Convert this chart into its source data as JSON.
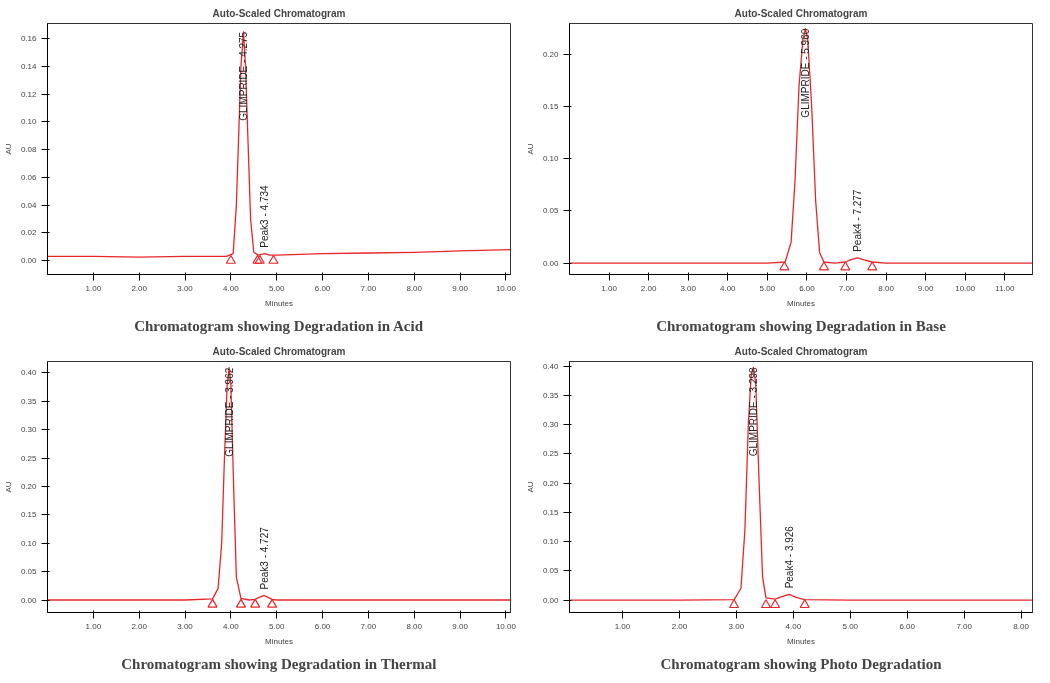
{
  "chart_data": [
    {
      "type": "line",
      "title": "Auto-Scaled Chromatogram",
      "xlabel": "Minutes",
      "ylabel": "AU",
      "xlim": [
        0,
        10.1
      ],
      "ylim": [
        -0.01,
        0.171
      ],
      "xticks": [
        {
          "value": 1,
          "label": "1.00"
        },
        {
          "value": 2,
          "label": "2.00"
        },
        {
          "value": 3,
          "label": "3.00"
        },
        {
          "value": 4,
          "label": "4.00"
        },
        {
          "value": 5,
          "label": "5.00"
        },
        {
          "value": 6,
          "label": "6.00"
        },
        {
          "value": 7,
          "label": "7.00"
        },
        {
          "value": 8,
          "label": "8.00"
        },
        {
          "value": 9,
          "label": "9.00"
        },
        {
          "value": 10,
          "label": "10.00"
        }
      ],
      "yticks": [
        {
          "value": 0,
          "label": "0.00"
        },
        {
          "value": 0.02,
          "label": "0.02"
        },
        {
          "value": 0.04,
          "label": "0.04"
        },
        {
          "value": 0.06,
          "label": "0.06"
        },
        {
          "value": 0.08,
          "label": "0.08"
        },
        {
          "value": 0.1,
          "label": "0.10"
        },
        {
          "value": 0.12,
          "label": "0.12"
        },
        {
          "value": 0.14,
          "label": "0.14"
        },
        {
          "value": 0.16,
          "label": "0.16"
        }
      ],
      "series": [
        {
          "color": "#e8262a",
          "x": [
            0,
            1,
            2,
            3,
            3.9,
            4.05,
            4.12,
            4.18,
            4.22,
            4.275,
            4.32,
            4.37,
            4.43,
            4.5,
            4.6,
            4.734,
            4.85,
            5,
            6,
            7,
            8,
            9,
            10.1
          ],
          "values": [
            0.003,
            0.003,
            0.0025,
            0.003,
            0.003,
            0.005,
            0.04,
            0.1,
            0.14,
            0.165,
            0.14,
            0.09,
            0.03,
            0.006,
            0.004,
            0.005,
            0.004,
            0.004,
            0.005,
            0.0055,
            0.006,
            0.007,
            0.008
          ]
        },
        {
          "type": "scatter",
          "marker": "triangle",
          "color": "#e8262a",
          "x": [
            4.0,
            4.58,
            4.63,
            4.93
          ],
          "values": [
            0,
            0,
            0,
            0
          ]
        }
      ],
      "annotations": [
        {
          "text": "GLIMPRIDE - 4.275",
          "x": 4.275,
          "y": 0.165
        },
        {
          "text": "Peak3 - 4.734",
          "x": 4.734,
          "y": 0.005
        },
        "Chromatogram showing Degradation in Acid"
      ]
    },
    {
      "type": "line",
      "title": "Auto-Scaled Chromatogram",
      "xlabel": "Minutes",
      "ylabel": "AU",
      "xlim": [
        0,
        11.7
      ],
      "ylim": [
        -0.011,
        0.23
      ],
      "xticks": [
        {
          "value": 1,
          "label": "1.00"
        },
        {
          "value": 2,
          "label": "2.00"
        },
        {
          "value": 3,
          "label": "3.00"
        },
        {
          "value": 4,
          "label": "4.00"
        },
        {
          "value": 5,
          "label": "5.00"
        },
        {
          "value": 6,
          "label": "6.00"
        },
        {
          "value": 7,
          "label": "7.00"
        },
        {
          "value": 8,
          "label": "8.00"
        },
        {
          "value": 9,
          "label": "9.00"
        },
        {
          "value": 10,
          "label": "10.00"
        },
        {
          "value": 11,
          "label": "11.00"
        }
      ],
      "yticks": [
        {
          "value": 0,
          "label": "0.00"
        },
        {
          "value": 0.05,
          "label": "0.05"
        },
        {
          "value": 0.1,
          "label": "0.10"
        },
        {
          "value": 0.15,
          "label": "0.15"
        },
        {
          "value": 0.2,
          "label": "0.20"
        }
      ],
      "series": [
        {
          "color": "#e8262a",
          "x": [
            0,
            1,
            2,
            3,
            4,
            5,
            5.45,
            5.6,
            5.7,
            5.8,
            5.9,
            5.96,
            6.02,
            6.12,
            6.22,
            6.32,
            6.43,
            6.7,
            6.97,
            7.1,
            7.277,
            7.45,
            7.65,
            8,
            9,
            10,
            11,
            11.7
          ],
          "values": [
            0,
            0,
            0,
            0,
            0,
            0,
            0.001,
            0.02,
            0.08,
            0.17,
            0.215,
            0.225,
            0.215,
            0.15,
            0.06,
            0.01,
            0.001,
            0,
            0.001,
            0.003,
            0.005,
            0.003,
            0.001,
            0,
            0,
            0,
            0,
            0
          ]
        },
        {
          "type": "scatter",
          "marker": "triangle",
          "color": "#e8262a",
          "x": [
            5.43,
            6.43,
            6.97,
            7.65
          ],
          "values": [
            -0.004,
            -0.004,
            -0.004,
            -0.004
          ]
        }
      ],
      "annotations": [
        {
          "text": "GLIMPRIDE - 5.960",
          "x": 5.96,
          "y": 0.225
        },
        {
          "text": "Peak4 - 7.277",
          "x": 7.277,
          "y": 0.005
        },
        "Chromatogram showing Degradation in Base"
      ]
    },
    {
      "type": "line",
      "title": "Auto-Scaled Chromatogram",
      "xlabel": "Minutes",
      "ylabel": "AU",
      "xlim": [
        0,
        10.1
      ],
      "ylim": [
        -0.022,
        0.42
      ],
      "xticks": [
        {
          "value": 1,
          "label": "1.00"
        },
        {
          "value": 2,
          "label": "2.00"
        },
        {
          "value": 3,
          "label": "3.00"
        },
        {
          "value": 4,
          "label": "4.00"
        },
        {
          "value": 5,
          "label": "5.00"
        },
        {
          "value": 6,
          "label": "6.00"
        },
        {
          "value": 7,
          "label": "7.00"
        },
        {
          "value": 8,
          "label": "8.00"
        },
        {
          "value": 9,
          "label": "9.00"
        },
        {
          "value": 10,
          "label": "10.00"
        }
      ],
      "yticks": [
        {
          "value": 0,
          "label": "0.00"
        },
        {
          "value": 0.05,
          "label": "0.05"
        },
        {
          "value": 0.1,
          "label": "0.10"
        },
        {
          "value": 0.15,
          "label": "0.15"
        },
        {
          "value": 0.2,
          "label": "0.20"
        },
        {
          "value": 0.25,
          "label": "0.25"
        },
        {
          "value": 0.3,
          "label": "0.30"
        },
        {
          "value": 0.35,
          "label": "0.35"
        },
        {
          "value": 0.4,
          "label": "0.40"
        }
      ],
      "series": [
        {
          "color": "#e8262a",
          "x": [
            0,
            1,
            2,
            3,
            3.6,
            3.72,
            3.8,
            3.86,
            3.92,
            3.962,
            4.0,
            4.06,
            4.12,
            4.22,
            4.4,
            4.53,
            4.63,
            4.727,
            4.8,
            4.9,
            5,
            6,
            7,
            8,
            9,
            10.1
          ],
          "values": [
            0,
            0,
            0,
            0,
            0.002,
            0.02,
            0.1,
            0.25,
            0.38,
            0.409,
            0.38,
            0.2,
            0.04,
            0.003,
            0,
            0.001,
            0.005,
            0.008,
            0.005,
            0.001,
            0,
            0,
            0,
            0,
            0,
            0
          ]
        },
        {
          "type": "scatter",
          "marker": "triangle",
          "color": "#e8262a",
          "x": [
            3.6,
            4.22,
            4.53,
            4.9
          ],
          "values": [
            -0.008,
            -0.008,
            -0.008,
            -0.008
          ]
        }
      ],
      "annotations": [
        {
          "text": "GLIMPRIDE - 3.962",
          "x": 3.962,
          "y": 0.409
        },
        {
          "text": "Peak3 - 4.727",
          "x": 4.727,
          "y": 0.008
        },
        "Chromatogram showing Degradation in Thermal"
      ]
    },
    {
      "type": "line",
      "title": "Auto-Scaled Chromatogram",
      "xlabel": "Minutes",
      "ylabel": "AU",
      "xlim": [
        0.07,
        8.2
      ],
      "ylim": [
        -0.021,
        0.408
      ],
      "xticks": [
        {
          "value": 1,
          "label": "1.00"
        },
        {
          "value": 2,
          "label": "2.00"
        },
        {
          "value": 3,
          "label": "3.00"
        },
        {
          "value": 4,
          "label": "4.00"
        },
        {
          "value": 5,
          "label": "5.00"
        },
        {
          "value": 6,
          "label": "6.00"
        },
        {
          "value": 7,
          "label": "7.00"
        },
        {
          "value": 8,
          "label": "8.00"
        }
      ],
      "yticks": [
        {
          "value": 0,
          "label": "0.00"
        },
        {
          "value": 0.05,
          "label": "0.05"
        },
        {
          "value": 0.1,
          "label": "0.10"
        },
        {
          "value": 0.15,
          "label": "0.15"
        },
        {
          "value": 0.2,
          "label": "0.20"
        },
        {
          "value": 0.25,
          "label": "0.25"
        },
        {
          "value": 0.3,
          "label": "0.30"
        },
        {
          "value": 0.35,
          "label": "0.35"
        },
        {
          "value": 0.4,
          "label": "0.40"
        }
      ],
      "series": [
        {
          "color": "#e8262a",
          "x": [
            0.07,
            1,
            2,
            2.96,
            3.08,
            3.15,
            3.21,
            3.26,
            3.298,
            3.34,
            3.4,
            3.46,
            3.52,
            3.68,
            3.8,
            3.926,
            4.05,
            4.2,
            5,
            6,
            7,
            8.2
          ],
          "values": [
            0,
            0,
            0,
            0.001,
            0.02,
            0.12,
            0.3,
            0.385,
            0.398,
            0.37,
            0.2,
            0.04,
            0.004,
            0.002,
            0.006,
            0.01,
            0.005,
            0.001,
            0,
            0,
            0,
            0
          ]
        },
        {
          "type": "scatter",
          "marker": "triangle",
          "color": "#e8262a",
          "x": [
            2.96,
            3.52,
            3.68,
            4.2
          ],
          "values": [
            -0.008,
            -0.008,
            -0.008,
            -0.008
          ]
        }
      ],
      "annotations": [
        {
          "text": "GLIMPRIDE - 3.298",
          "x": 3.298,
          "y": 0.398
        },
        {
          "text": "Peak4 - 3.926",
          "x": 3.926,
          "y": 0.01
        },
        "Chromatogram showing Photo Degradation"
      ]
    }
  ]
}
